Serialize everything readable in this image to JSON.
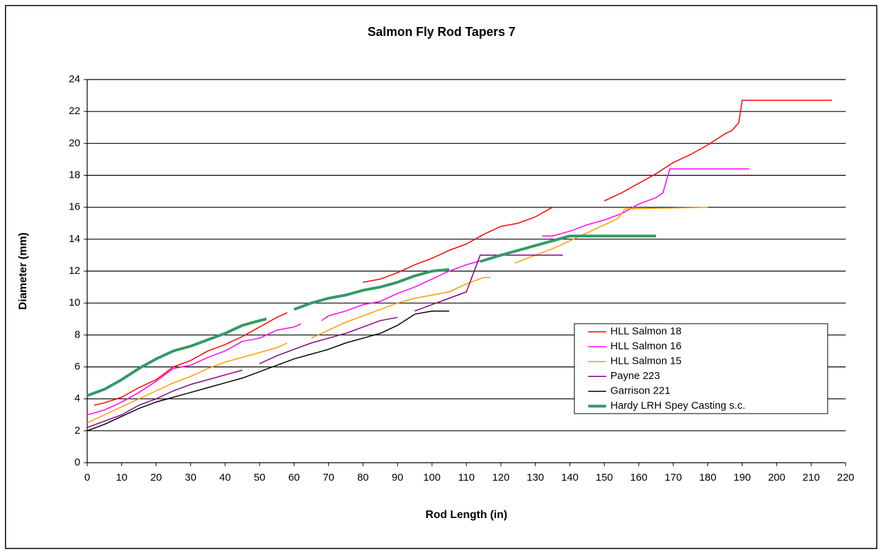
{
  "chart_data": {
    "type": "line",
    "title": "Salmon Fly Rod Tapers 7",
    "x_label": "Rod Length (in)",
    "y_label": "Diameter (mm)",
    "xlim": [
      0,
      220
    ],
    "ylim": [
      0,
      24
    ],
    "xticks": [
      0,
      10,
      20,
      30,
      40,
      50,
      60,
      70,
      80,
      90,
      100,
      110,
      120,
      130,
      140,
      150,
      160,
      170,
      180,
      190,
      200,
      210,
      220
    ],
    "yticks": [
      0,
      2,
      4,
      6,
      8,
      10,
      12,
      14,
      16,
      18,
      20,
      22,
      24
    ],
    "grid": true,
    "legend": "right",
    "series": [
      {
        "name": "HLL Salmon 18",
        "color": "#ff0000",
        "width": 1.5,
        "x": [
          2,
          5,
          10,
          15,
          20,
          25,
          30,
          35,
          40,
          45,
          50,
          55,
          58,
          70,
          80,
          85,
          90,
          95,
          100,
          105,
          110,
          115,
          120,
          125,
          130,
          135,
          142,
          150,
          155,
          160,
          165,
          170,
          175,
          180,
          185,
          187,
          189,
          190,
          216
        ],
        "values": [
          3.6,
          3.75,
          4.1,
          4.7,
          5.2,
          6.0,
          6.4,
          7.0,
          7.4,
          7.9,
          8.5,
          9.1,
          9.4,
          null,
          11.3,
          11.5,
          11.9,
          12.4,
          12.8,
          13.3,
          13.7,
          14.3,
          14.8,
          15.0,
          15.4,
          16.0,
          null,
          16.4,
          16.9,
          17.5,
          18.1,
          18.8,
          19.3,
          19.9,
          20.6,
          20.8,
          21.3,
          22.7,
          22.7
        ]
      },
      {
        "name": "HLL Salmon 16",
        "color": "#ff00ff",
        "width": 1.5,
        "x": [
          0,
          5,
          10,
          15,
          20,
          25,
          30,
          35,
          40,
          45,
          50,
          55,
          60,
          62,
          65,
          68,
          70,
          75,
          80,
          85,
          90,
          95,
          100,
          105,
          110,
          115,
          120,
          125,
          128,
          132,
          135,
          140,
          145,
          150,
          155,
          160,
          165,
          167,
          169,
          192
        ],
        "values": [
          3.0,
          3.3,
          3.8,
          4.4,
          5.1,
          5.9,
          6.1,
          6.6,
          7.0,
          7.6,
          7.8,
          8.3,
          8.5,
          8.7,
          null,
          8.9,
          9.2,
          9.5,
          9.9,
          10.1,
          10.6,
          11.0,
          11.5,
          12.0,
          12.4,
          12.7,
          13.0,
          13.3,
          null,
          14.2,
          14.2,
          14.5,
          14.9,
          15.2,
          15.6,
          16.2,
          16.6,
          16.9,
          18.4,
          18.4
        ]
      },
      {
        "name": "HLL Salmon 15",
        "color": "#ff9900",
        "width": 1.5,
        "x": [
          0,
          5,
          10,
          15,
          20,
          25,
          30,
          35,
          40,
          45,
          50,
          55,
          58,
          62,
          65,
          70,
          75,
          80,
          85,
          90,
          95,
          100,
          105,
          110,
          115,
          117,
          120,
          124,
          130,
          135,
          140,
          145,
          150,
          154,
          156,
          180
        ],
        "values": [
          2.5,
          3.0,
          3.5,
          4.0,
          4.5,
          5.0,
          5.4,
          5.9,
          6.3,
          6.6,
          6.9,
          7.2,
          7.5,
          null,
          7.8,
          8.3,
          8.8,
          9.2,
          9.6,
          10.0,
          10.3,
          10.5,
          10.7,
          11.2,
          11.6,
          11.6,
          null,
          12.5,
          13.0,
          13.4,
          13.9,
          14.4,
          14.9,
          15.3,
          15.9,
          16.0
        ]
      },
      {
        "name": "Payne 223",
        "color": "#800080",
        "width": 1.5,
        "x": [
          0,
          5,
          10,
          15,
          20,
          25,
          30,
          35,
          40,
          45,
          48,
          50,
          55,
          60,
          65,
          70,
          75,
          80,
          85,
          90,
          92,
          95,
          100,
          105,
          110,
          114,
          138
        ],
        "values": [
          2.2,
          2.6,
          3.0,
          3.6,
          4.0,
          4.5,
          4.9,
          5.2,
          5.5,
          5.8,
          null,
          6.2,
          6.7,
          7.1,
          7.5,
          7.8,
          8.1,
          8.5,
          8.9,
          9.1,
          null,
          9.5,
          9.9,
          10.3,
          10.7,
          13.0,
          13.0
        ]
      },
      {
        "name": "Garrison 221",
        "color": "#000000",
        "width": 1.5,
        "x": [
          0,
          5,
          10,
          15,
          20,
          25,
          30,
          35,
          40,
          45,
          50,
          55,
          60,
          65,
          70,
          75,
          80,
          85,
          90,
          95,
          100,
          105
        ],
        "values": [
          2.0,
          2.4,
          2.9,
          3.4,
          3.8,
          4.1,
          4.4,
          4.7,
          5.0,
          5.3,
          5.7,
          6.1,
          6.5,
          6.8,
          7.1,
          7.5,
          7.8,
          8.1,
          8.6,
          9.3,
          9.5,
          9.5
        ]
      },
      {
        "name": "Hardy LRH Spey Casting s.c.",
        "color": "#339966",
        "width": 4,
        "x": [
          0,
          5,
          10,
          15,
          20,
          25,
          30,
          35,
          40,
          45,
          50,
          52,
          56,
          60,
          65,
          70,
          75,
          80,
          85,
          90,
          95,
          100,
          105,
          110,
          114,
          120,
          125,
          130,
          135,
          140,
          165
        ],
        "values": [
          4.2,
          4.6,
          5.2,
          5.9,
          6.5,
          7.0,
          7.3,
          7.7,
          8.1,
          8.6,
          8.9,
          9.0,
          null,
          9.6,
          10.0,
          10.3,
          10.5,
          10.8,
          11.0,
          11.3,
          11.7,
          12.0,
          12.1,
          null,
          12.6,
          13.0,
          13.3,
          13.6,
          13.9,
          14.2,
          14.2
        ]
      }
    ]
  }
}
